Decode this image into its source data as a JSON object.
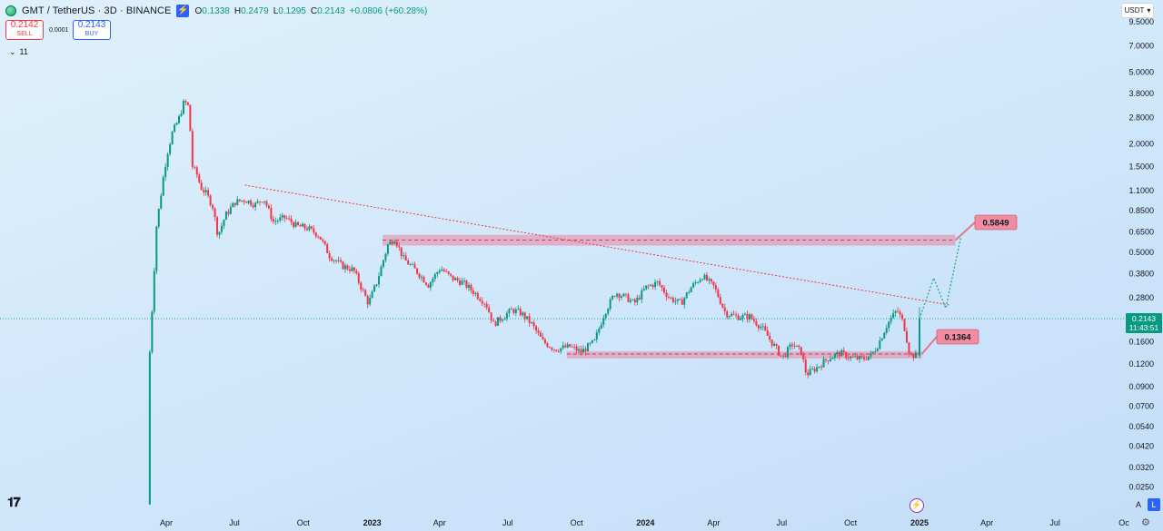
{
  "header": {
    "symbol": "GMT / TetherUS · 3D · BINANCE",
    "ohlc": [
      {
        "k": "O",
        "v": "0.1338"
      },
      {
        "k": "H",
        "v": "0.2479"
      },
      {
        "k": "L",
        "v": "0.1295"
      },
      {
        "k": "C",
        "v": "0.2143"
      }
    ],
    "change": "+0.0806 (+60.28%)",
    "bolt_icon": "lightning-icon"
  },
  "trade": {
    "sell_price": "0.2142",
    "sell_label": "SELL",
    "spread": "0.0001",
    "buy_price": "0.2143",
    "buy_label": "BUY"
  },
  "indicators_toggle": "11",
  "currency": "USDT",
  "last_price": {
    "price": "0.2143",
    "countdown": "11:43:51"
  },
  "scale_buttons": {
    "auto": "A",
    "log": "L"
  },
  "colors": {
    "up": "#089981",
    "down": "#f23645",
    "zone": "#f06c8a",
    "trend": "#f23645",
    "projection": "#22ab94"
  },
  "chart_data": {
    "type": "candlestick",
    "scale": "log",
    "y_ticks": [
      0.025,
      0.032,
      0.042,
      0.054,
      0.07,
      0.09,
      0.12,
      0.16,
      0.21,
      0.28,
      0.38,
      0.5,
      0.65,
      0.85,
      1.1,
      1.5,
      2.0,
      2.8,
      3.8,
      5.0,
      7.0,
      9.5
    ],
    "y_tick_labels": [
      "0.0250",
      "0.0320",
      "0.0420",
      "0.0540",
      "0.0700",
      "0.0900",
      "0.1200",
      "0.1600",
      "0.2100",
      "0.2800",
      "0.3800",
      "0.5000",
      "0.6500",
      "0.8500",
      "1.1000",
      "1.5000",
      "2.0000",
      "2.8000",
      "3.8000",
      "5.0000",
      "7.0000",
      "9.5000"
    ],
    "x_ticks": [
      {
        "date": "2022-04-01",
        "label": "Apr"
      },
      {
        "date": "2022-07-01",
        "label": "Jul"
      },
      {
        "date": "2022-10-01",
        "label": "Oct"
      },
      {
        "date": "2023-01-01",
        "label": "2023"
      },
      {
        "date": "2023-04-01",
        "label": "Apr"
      },
      {
        "date": "2023-07-01",
        "label": "Jul"
      },
      {
        "date": "2023-10-01",
        "label": "Oct"
      },
      {
        "date": "2024-01-01",
        "label": "2024"
      },
      {
        "date": "2024-04-01",
        "label": "Apr"
      },
      {
        "date": "2024-07-01",
        "label": "Jul"
      },
      {
        "date": "2024-10-01",
        "label": "Oct"
      },
      {
        "date": "2025-01-01",
        "label": "2025"
      },
      {
        "date": "2025-04-01",
        "label": "Apr"
      },
      {
        "date": "2025-07-01",
        "label": "Jul"
      },
      {
        "date": "2025-10-01",
        "label": "Oc"
      }
    ],
    "price_path": [
      [
        "2022-03-10",
        0.02
      ],
      [
        "2022-03-13",
        0.14
      ],
      [
        "2022-03-22",
        0.7
      ],
      [
        "2022-03-31",
        1.3
      ],
      [
        "2022-04-05",
        1.75
      ],
      [
        "2022-04-12",
        2.3
      ],
      [
        "2022-04-20",
        2.7
      ],
      [
        "2022-04-28",
        3.45
      ],
      [
        "2022-05-04",
        3.2
      ],
      [
        "2022-05-09",
        1.5
      ],
      [
        "2022-05-15",
        1.35
      ],
      [
        "2022-05-20",
        1.15
      ],
      [
        "2022-05-28",
        1.05
      ],
      [
        "2022-06-05",
        0.9
      ],
      [
        "2022-06-12",
        0.62
      ],
      [
        "2022-06-22",
        0.8
      ],
      [
        "2022-07-05",
        0.95
      ],
      [
        "2022-07-18",
        0.98
      ],
      [
        "2022-08-01",
        0.92
      ],
      [
        "2022-08-12",
        1.0
      ],
      [
        "2022-08-25",
        0.74
      ],
      [
        "2022-09-10",
        0.78
      ],
      [
        "2022-09-25",
        0.7
      ],
      [
        "2022-10-10",
        0.68
      ],
      [
        "2022-10-25",
        0.62
      ],
      [
        "2022-11-08",
        0.48
      ],
      [
        "2022-11-25",
        0.42
      ],
      [
        "2022-12-10",
        0.4
      ],
      [
        "2022-12-30",
        0.26
      ],
      [
        "2023-01-10",
        0.34
      ],
      [
        "2023-01-25",
        0.55
      ],
      [
        "2023-02-03",
        0.6
      ],
      [
        "2023-02-15",
        0.46
      ],
      [
        "2023-03-05",
        0.39
      ],
      [
        "2023-03-20",
        0.33
      ],
      [
        "2023-04-05",
        0.41
      ],
      [
        "2023-04-20",
        0.36
      ],
      [
        "2023-05-05",
        0.34
      ],
      [
        "2023-05-20",
        0.3
      ],
      [
        "2023-06-05",
        0.26
      ],
      [
        "2023-06-15",
        0.2
      ],
      [
        "2023-06-28",
        0.22
      ],
      [
        "2023-07-10",
        0.24
      ],
      [
        "2023-07-22",
        0.23
      ],
      [
        "2023-08-05",
        0.2
      ],
      [
        "2023-08-20",
        0.16
      ],
      [
        "2023-09-05",
        0.145
      ],
      [
        "2023-09-25",
        0.15
      ],
      [
        "2023-10-10",
        0.14
      ],
      [
        "2023-10-28",
        0.16
      ],
      [
        "2023-11-10",
        0.23
      ],
      [
        "2023-11-25",
        0.3
      ],
      [
        "2023-12-10",
        0.28
      ],
      [
        "2023-12-20",
        0.26
      ],
      [
        "2024-01-05",
        0.32
      ],
      [
        "2024-01-20",
        0.34
      ],
      [
        "2024-02-05",
        0.28
      ],
      [
        "2024-02-20",
        0.26
      ],
      [
        "2024-03-05",
        0.32
      ],
      [
        "2024-03-20",
        0.37
      ],
      [
        "2024-04-05",
        0.32
      ],
      [
        "2024-04-20",
        0.23
      ],
      [
        "2024-05-05",
        0.22
      ],
      [
        "2024-05-22",
        0.22
      ],
      [
        "2024-06-08",
        0.19
      ],
      [
        "2024-06-20",
        0.16
      ],
      [
        "2024-07-05",
        0.13
      ],
      [
        "2024-07-18",
        0.155
      ],
      [
        "2024-07-30",
        0.14
      ],
      [
        "2024-08-06",
        0.105
      ],
      [
        "2024-08-20",
        0.115
      ],
      [
        "2024-09-05",
        0.13
      ],
      [
        "2024-09-20",
        0.138
      ],
      [
        "2024-10-05",
        0.13
      ],
      [
        "2024-10-20",
        0.128
      ],
      [
        "2024-11-01",
        0.135
      ],
      [
        "2024-11-10",
        0.155
      ],
      [
        "2024-11-22",
        0.2
      ],
      [
        "2024-12-05",
        0.24
      ],
      [
        "2024-12-14",
        0.2
      ],
      [
        "2024-12-22",
        0.135
      ],
      [
        "2024-12-29",
        0.134
      ]
    ],
    "last_candle": {
      "date": "2025-01-01",
      "o": 0.1338,
      "h": 0.2479,
      "l": 0.1295,
      "c": 0.2143
    },
    "zones": [
      {
        "from": "2023-01-15",
        "to": "2025-02-18",
        "low": 0.545,
        "high": 0.625,
        "level": 0.5849,
        "label": "0.5849"
      },
      {
        "from": "2023-09-18",
        "to": "2025-01-04",
        "low": 0.129,
        "high": 0.141,
        "level": 0.1364,
        "label": "0.1364"
      }
    ],
    "trendline": [
      [
        "2022-07-15",
        1.18
      ],
      [
        "2025-02-10",
        0.255
      ]
    ],
    "projection": [
      [
        "2025-01-01",
        0.2143
      ],
      [
        "2025-01-20",
        0.36
      ],
      [
        "2025-02-05",
        0.245
      ],
      [
        "2025-02-25",
        0.6
      ]
    ]
  }
}
